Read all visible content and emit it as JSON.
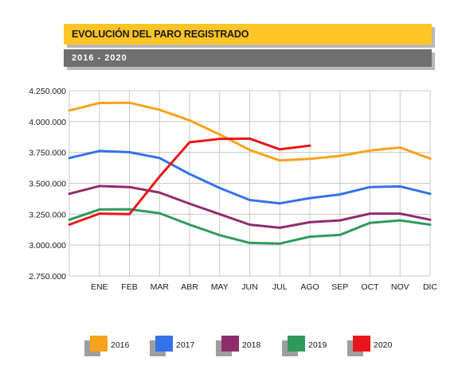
{
  "header": {
    "title": "EVOLUCIÓN DEL PARO REGISTRADO",
    "subtitle": "2016 - 2020"
  },
  "colors": {
    "title_bar": "#ffc425",
    "subtitle_bar": "#6f6f6f",
    "grid": "#c8c8c8"
  },
  "chart_data": {
    "type": "line",
    "title": "EVOLUCIÓN DEL PARO REGISTRADO",
    "subtitle": "2016 - 2020",
    "xlabel": "",
    "ylabel": "",
    "grid": true,
    "legend_position": "bottom",
    "categories": [
      "",
      "ENE",
      "FEB",
      "MAR",
      "ABR",
      "MAY",
      "JUN",
      "JUL",
      "AGO",
      "SEP",
      "OCT",
      "NOV",
      "DIC"
    ],
    "ylim": [
      2750000,
      4250000
    ],
    "y_ticks": [
      "2.750.000",
      "3.000.000",
      "3.250.000",
      "3.500.000",
      "3.750.000",
      "4.000.000",
      "4.250.000"
    ],
    "series": [
      {
        "name": "2016",
        "color": "#f7a21b",
        "values": [
          4090000,
          4150000,
          4152000,
          4095000,
          4010000,
          3895000,
          3770000,
          3685000,
          3698000,
          3722000,
          3765000,
          3790000,
          3700000
        ]
      },
      {
        "name": "2017",
        "color": "#3472e8",
        "values": [
          3705000,
          3762000,
          3752000,
          3705000,
          3575000,
          3462000,
          3365000,
          3338000,
          3380000,
          3410000,
          3470000,
          3475000,
          3415000
        ]
      },
      {
        "name": "2018",
        "color": "#8e2d6c",
        "values": [
          3415000,
          3478000,
          3470000,
          3425000,
          3335000,
          3250000,
          3165000,
          3140000,
          3185000,
          3200000,
          3255000,
          3255000,
          3205000
        ]
      },
      {
        "name": "2019",
        "color": "#2f9a5c",
        "values": [
          3205000,
          3288000,
          3290000,
          3258000,
          3165000,
          3080000,
          3018000,
          3012000,
          3068000,
          3082000,
          3180000,
          3200000,
          3165000
        ]
      },
      {
        "name": "2020",
        "color": "#e8161b",
        "values": [
          3165000,
          3255000,
          3250000,
          3555000,
          3832000,
          3860000,
          3862000,
          3775000,
          3805000,
          null,
          null,
          null,
          null
        ]
      }
    ]
  }
}
